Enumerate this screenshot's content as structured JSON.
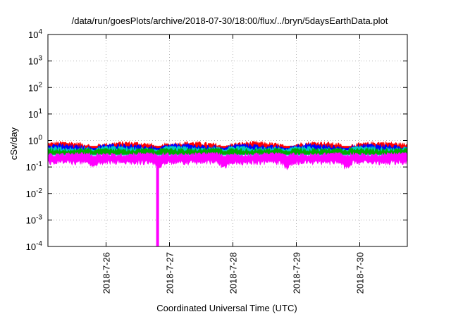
{
  "chart_data": {
    "type": "area",
    "title": "/data/run/goesPlots/archive/2018-07-30/18:00/flux/../bryn/5daysEarthData.plot",
    "xlabel": "Coordinated Universal Time (UTC)",
    "ylabel": "cSv/day",
    "yscale": "log",
    "ylim": [
      0.0001,
      10000
    ],
    "y_ticks": [
      {
        "base": "10",
        "exp": "-4"
      },
      {
        "base": "10",
        "exp": "-3"
      },
      {
        "base": "10",
        "exp": "-2"
      },
      {
        "base": "10",
        "exp": "-1"
      },
      {
        "base": "10",
        "exp": "0"
      },
      {
        "base": "10",
        "exp": "1"
      },
      {
        "base": "10",
        "exp": "2"
      },
      {
        "base": "10",
        "exp": "3"
      },
      {
        "base": "10",
        "exp": "4"
      }
    ],
    "x_range_days": [
      "2018-07-25 02:00",
      "2018-07-30 18:00"
    ],
    "x_ticks": [
      "2018-7-26",
      "2018-7-27",
      "2018-7-28",
      "2018-7-29",
      "2018-7-30"
    ],
    "grid": true,
    "legend": "none",
    "series": [
      {
        "color": "#ff0000",
        "approx_level": 0.6,
        "band": [
          0.38,
          1.0
        ]
      },
      {
        "color": "#0000ff",
        "approx_level": 0.5,
        "band": [
          0.3,
          0.9
        ]
      },
      {
        "color": "#00c8c8",
        "approx_level": 0.42,
        "band": [
          0.28,
          0.6
        ]
      },
      {
        "color": "#00aa00",
        "approx_level": 0.38,
        "band": [
          0.3,
          0.5
        ]
      },
      {
        "color": "#ff00ff",
        "approx_level": 0.25,
        "band": [
          0.07,
          0.35
        ],
        "dropout_at": "2018-07-26 19:30",
        "dropout_min": 0.0001
      }
    ]
  }
}
